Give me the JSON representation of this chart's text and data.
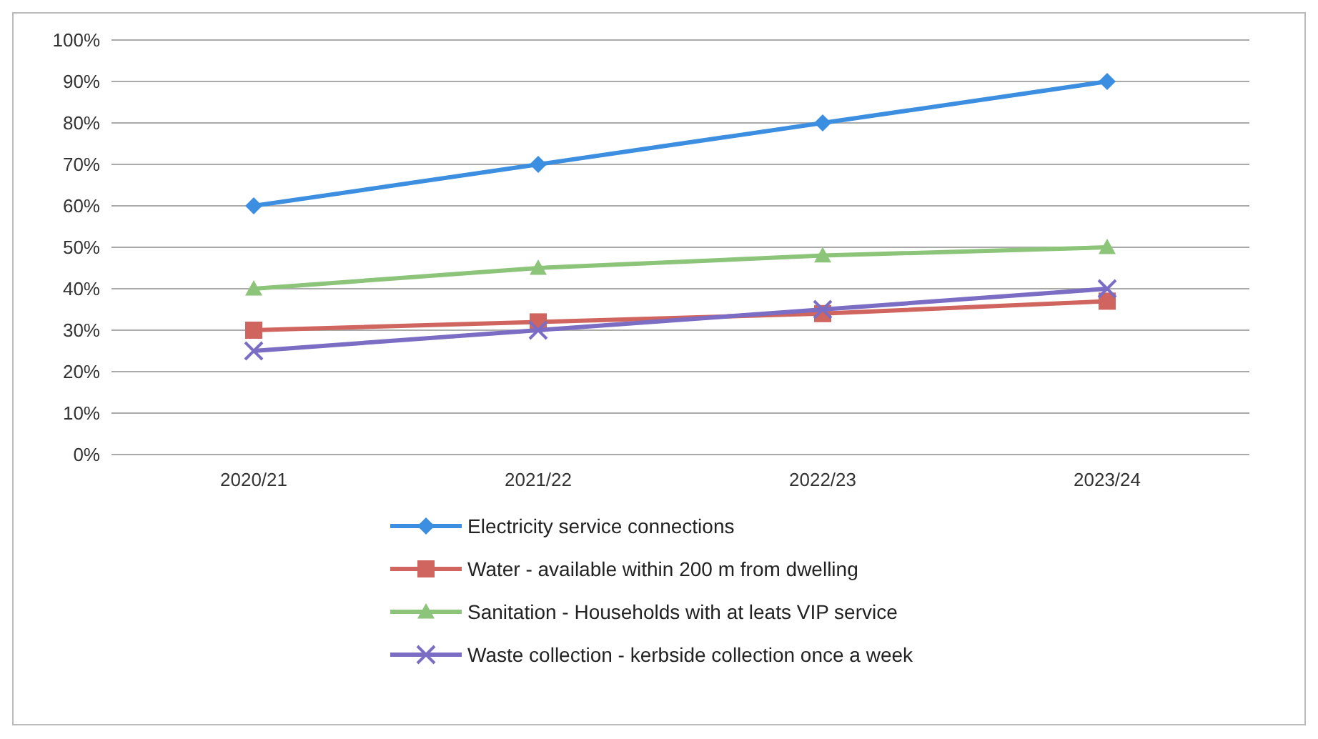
{
  "chart_data": {
    "type": "line",
    "categories": [
      "2020/21",
      "2021/22",
      "2022/23",
      "2023/24"
    ],
    "series": [
      {
        "name": "Electricity  service connections",
        "color": "#3b8ee0",
        "marker": "diamond",
        "values": [
          60,
          70,
          80,
          90
        ]
      },
      {
        "name": "Water - available within 200 m from dwelling",
        "color": "#d0655f",
        "marker": "square",
        "values": [
          30,
          32,
          34,
          37
        ]
      },
      {
        "name": "Sanitation - Households with at leats VIP service",
        "color": "#8cc47a",
        "marker": "triangle",
        "values": [
          40,
          45,
          48,
          50
        ]
      },
      {
        "name": "Waste collection - kerbside collection once a week",
        "color": "#7b6cc4",
        "marker": "cross",
        "values": [
          25,
          30,
          35,
          40
        ]
      }
    ],
    "ylim": [
      0,
      100
    ],
    "yticks": [
      {
        "value": 0,
        "label": "0%"
      },
      {
        "value": 10,
        "label": "10%"
      },
      {
        "value": 20,
        "label": "20%"
      },
      {
        "value": 30,
        "label": "30%"
      },
      {
        "value": 40,
        "label": "40%"
      },
      {
        "value": 50,
        "label": "50%"
      },
      {
        "value": 60,
        "label": "60%"
      },
      {
        "value": 70,
        "label": "70%"
      },
      {
        "value": 80,
        "label": "80%"
      },
      {
        "value": 90,
        "label": "90%"
      },
      {
        "value": 100,
        "label": "100%"
      }
    ],
    "grid": "y",
    "legend": "bottom",
    "line_style": "solid"
  }
}
